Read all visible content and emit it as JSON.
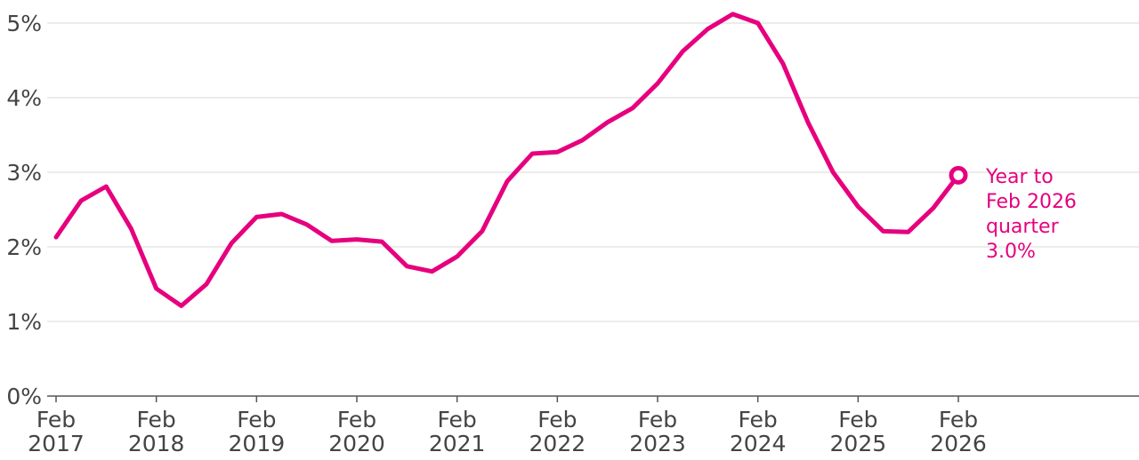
{
  "chart_data": {
    "type": "line",
    "title": "",
    "xlabel": "",
    "ylabel": "",
    "ylim": [
      0,
      5
    ],
    "y_ticks": [
      "0%",
      "1%",
      "2%",
      "3%",
      "4%",
      "5%"
    ],
    "y_tick_values": [
      0,
      1,
      2,
      3,
      4,
      5
    ],
    "x_ticks": [
      {
        "line1": "Feb",
        "line2": "2017"
      },
      {
        "line1": "Feb",
        "line2": "2018"
      },
      {
        "line1": "Feb",
        "line2": "2019"
      },
      {
        "line1": "Feb",
        "line2": "2020"
      },
      {
        "line1": "Feb",
        "line2": "2021"
      },
      {
        "line1": "Feb",
        "line2": "2022"
      },
      {
        "line1": "Feb",
        "line2": "2023"
      },
      {
        "line1": "Feb",
        "line2": "2024"
      },
      {
        "line1": "Feb",
        "line2": "2025"
      },
      {
        "line1": "Feb",
        "line2": "2026"
      }
    ],
    "x_range": [
      "Feb 2017",
      "Feb 2026"
    ],
    "frequency": "quarterly",
    "grid": true,
    "series": [
      {
        "color": "#e6007e",
        "values": [
          2.13,
          2.62,
          2.81,
          2.24,
          1.44,
          1.21,
          1.5,
          2.05,
          2.4,
          2.44,
          2.3,
          2.08,
          2.1,
          2.07,
          1.74,
          1.67,
          1.87,
          2.21,
          2.88,
          3.25,
          3.27,
          3.43,
          3.67,
          3.86,
          4.19,
          4.62,
          4.92,
          5.12,
          5.0,
          4.46,
          3.67,
          3.0,
          2.54,
          2.21,
          2.2,
          2.52,
          2.96
        ]
      }
    ],
    "annotation": {
      "lines": [
        "Year to",
        "Feb 2026",
        "quarter",
        "3.0%"
      ],
      "marker": "open-circle-last-point"
    }
  }
}
